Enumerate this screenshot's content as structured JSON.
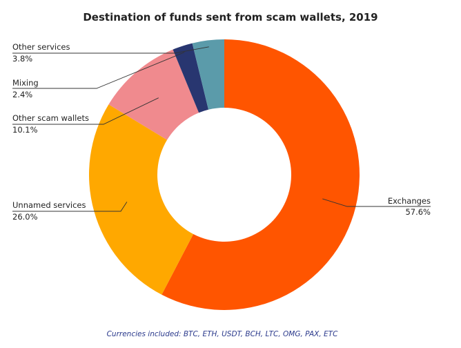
{
  "chart_data": {
    "type": "pie",
    "title": "Destination of funds sent from scam wallets, 2019",
    "donut": true,
    "slices": [
      {
        "label": "Exchanges",
        "value": 57.6,
        "value_label": "57.6%",
        "color": "#FF5500"
      },
      {
        "label": "Unnamed services",
        "value": 26.0,
        "value_label": "26.0%",
        "color": "#FFA800"
      },
      {
        "label": "Other scam wallets",
        "value": 10.1,
        "value_label": "10.1%",
        "color": "#F08A8E"
      },
      {
        "label": "Mixing",
        "value": 2.4,
        "value_label": "2.4%",
        "color": "#283670"
      },
      {
        "label": "Other services",
        "value": 3.8,
        "value_label": "3.8%",
        "color": "#5B9BAA"
      }
    ],
    "footnote": "Currencies included: BTC, ETH, USDT, BCH, LTC, OMG, PAX, ETC"
  }
}
